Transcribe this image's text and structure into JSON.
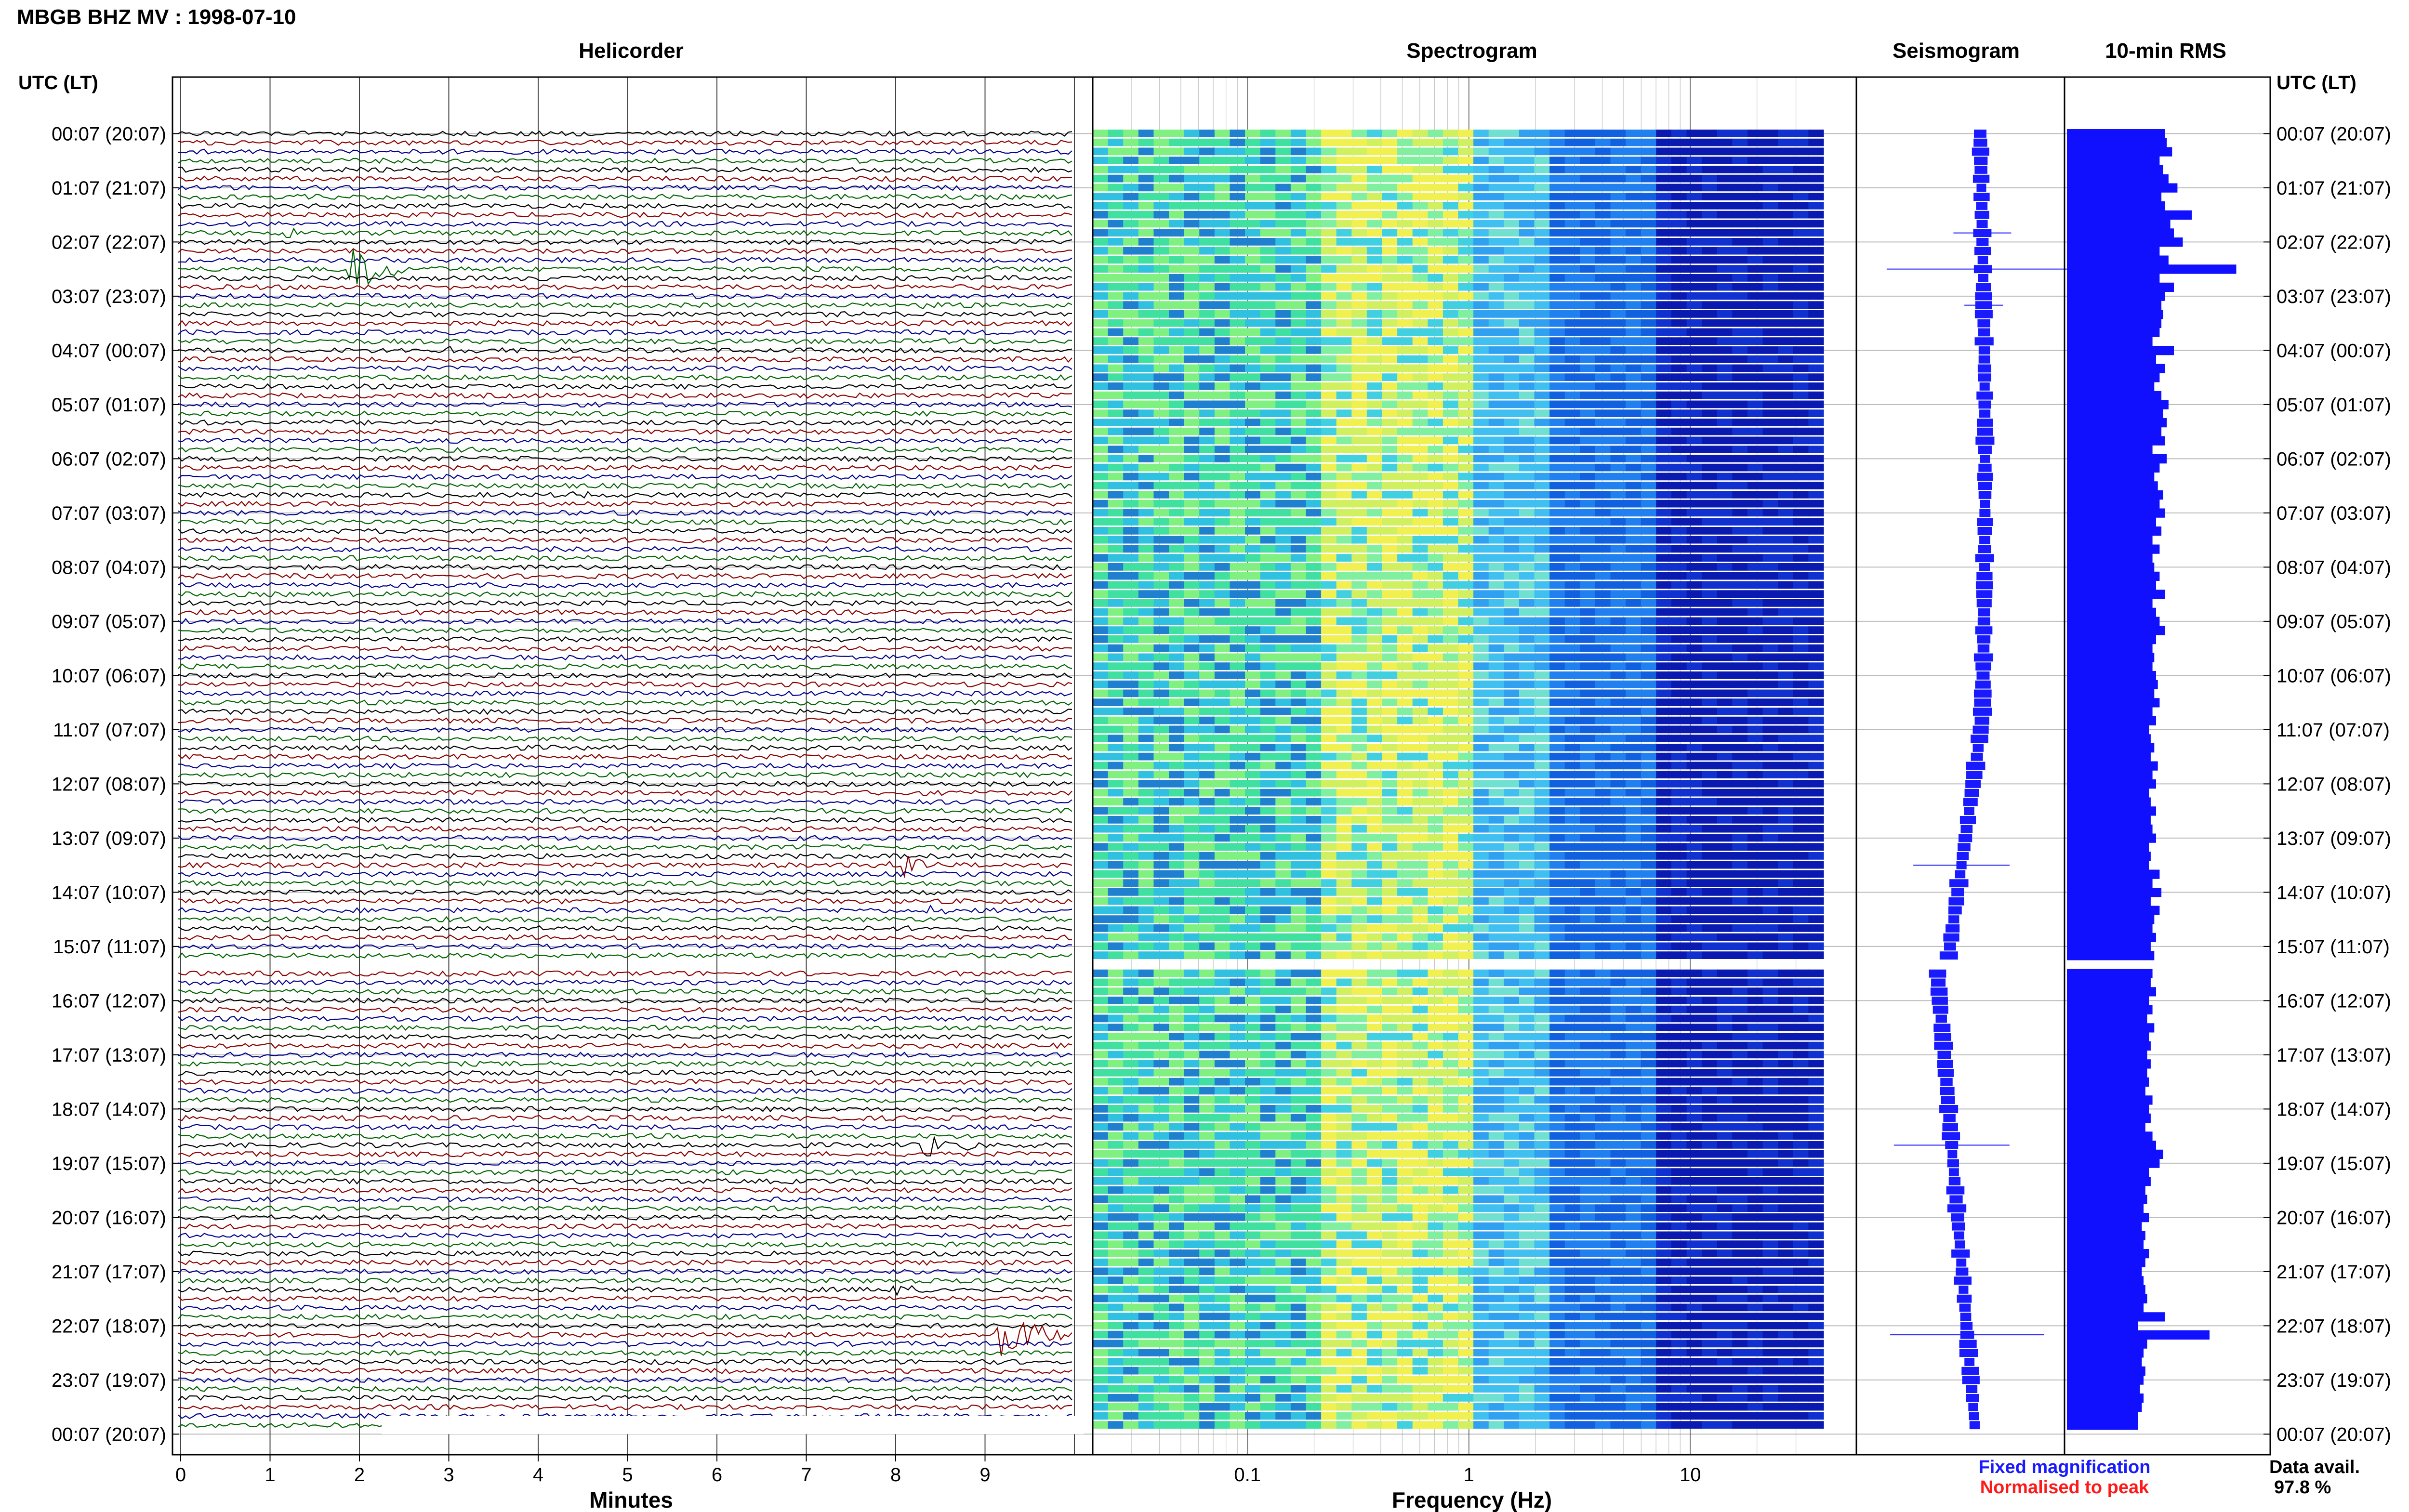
{
  "header": {
    "station_title": "MBGB BHZ MV : 1998-07-10"
  },
  "panels": {
    "helicorder": "Helicorder",
    "spectrogram": "Spectrogram",
    "seismogram": "Seismogram",
    "rms": "10-min RMS"
  },
  "axes": {
    "left_time_header": "UTC (LT)",
    "right_time_header": "UTC (LT)",
    "minutes_label": "Minutes",
    "frequency_label": "Frequency (Hz)",
    "minute_ticks": [
      "0",
      "1",
      "2",
      "3",
      "4",
      "5",
      "6",
      "7",
      "8",
      "9"
    ],
    "freq_ticks": [
      "0.1",
      "1",
      "10"
    ],
    "time_labels": [
      "00:07 (20:07)",
      "01:07 (21:07)",
      "02:07 (22:07)",
      "03:07 (23:07)",
      "04:07 (00:07)",
      "05:07 (01:07)",
      "06:07 (02:07)",
      "07:07 (03:07)",
      "08:07 (04:07)",
      "09:07 (05:07)",
      "10:07 (06:07)",
      "11:07 (07:07)",
      "12:07 (08:07)",
      "13:07 (09:07)",
      "14:07 (10:07)",
      "15:07 (11:07)",
      "16:07 (12:07)",
      "17:07 (13:07)",
      "18:07 (14:07)",
      "19:07 (15:07)",
      "20:07 (16:07)",
      "21:07 (17:07)",
      "22:07 (18:07)",
      "23:07 (19:07)",
      "00:07 (20:07)"
    ]
  },
  "legend": {
    "fixed_label": "Fixed magnification",
    "fixed_color": "#1a1aff",
    "normalised_label": "Normalised to peak",
    "normalised_color": "#ff1a1a"
  },
  "availability": {
    "label": "Data avail.",
    "value": "97.8 %"
  },
  "colors": {
    "trace_cycle": [
      "#000000",
      "#8b0000",
      "#00008b",
      "#006400"
    ],
    "rms_bar": "#1010ff",
    "spectro_low": "#0a1ab0",
    "spectro_peak": "#f0f050"
  },
  "chart_data": {
    "type": "heatmap",
    "helicorder": {
      "rows": 144,
      "minutes_per_row": 10,
      "xlim_minutes": [
        0,
        10
      ],
      "gap_after_row": 92,
      "events": [
        {
          "row": 11,
          "minute": 1.2,
          "amp": 0.6,
          "dur": 0.4
        },
        {
          "row": 15,
          "minute": 1.95,
          "amp": 3.5,
          "dur": 0.6
        },
        {
          "row": 19,
          "minute": 8.3,
          "amp": 0.8,
          "dur": 0.3
        },
        {
          "row": 24,
          "minute": 3.0,
          "amp": 0.5,
          "dur": 0.4
        },
        {
          "row": 40,
          "minute": 4.4,
          "amp": 0.5,
          "dur": 0.4
        },
        {
          "row": 81,
          "minute": 8.0,
          "amp": 2.0,
          "dur": 0.6
        },
        {
          "row": 86,
          "minute": 8.4,
          "amp": 0.6,
          "dur": 0.4
        },
        {
          "row": 112,
          "minute": 8.3,
          "amp": 2.0,
          "dur": 0.6
        },
        {
          "row": 128,
          "minute": 8.0,
          "amp": 0.5,
          "dur": 0.5
        },
        {
          "row": 133,
          "minute": 9.2,
          "amp": 3.5,
          "dur": 0.7
        }
      ]
    },
    "spectrogram": {
      "freq_range_hz": [
        0.02,
        40
      ],
      "scale": "log",
      "peak_band_hz": [
        0.2,
        1.0
      ]
    },
    "rms": {
      "values": [
        55,
        56,
        59,
        52,
        54,
        57,
        62,
        53,
        55,
        70,
        58,
        60,
        65,
        52,
        57,
        85,
        52,
        60,
        55,
        53,
        54,
        53,
        52,
        48,
        60,
        50,
        55,
        52,
        49,
        53,
        57,
        54,
        56,
        53,
        55,
        48,
        56,
        52,
        49,
        51,
        54,
        52,
        55,
        50,
        53,
        48,
        52,
        48,
        49,
        52,
        50,
        55,
        48,
        50,
        52,
        55,
        50,
        48,
        49,
        48,
        50,
        51,
        49,
        52,
        48,
        50,
        46,
        47,
        49,
        47,
        51,
        48,
        50,
        46,
        47,
        50,
        47,
        48,
        50,
        46,
        47,
        46,
        52,
        48,
        50,
        47,
        52,
        49,
        48,
        50,
        47,
        49,
        46,
        48,
        47,
        50,
        46,
        48,
        45,
        49,
        46,
        47,
        45,
        47,
        45,
        46,
        44,
        48,
        46,
        47,
        44,
        48,
        50,
        45,
        52,
        46,
        47,
        44,
        45,
        43,
        46,
        42,
        44,
        43,
        46,
        44,
        42,
        43,
        44,
        45,
        43,
        46,
        40,
        44,
        45,
        43,
        42,
        44,
        43,
        41,
        43,
        42,
        40,
        40
      ],
      "spikes": {
        "15": 95,
        "84": 53,
        "113": 54,
        "133": 80,
        "131": 55
      },
      "missing_rows": [
        92
      ]
    },
    "seismogram": {
      "drift_profile": "slow drift with gap after row 92"
    }
  }
}
